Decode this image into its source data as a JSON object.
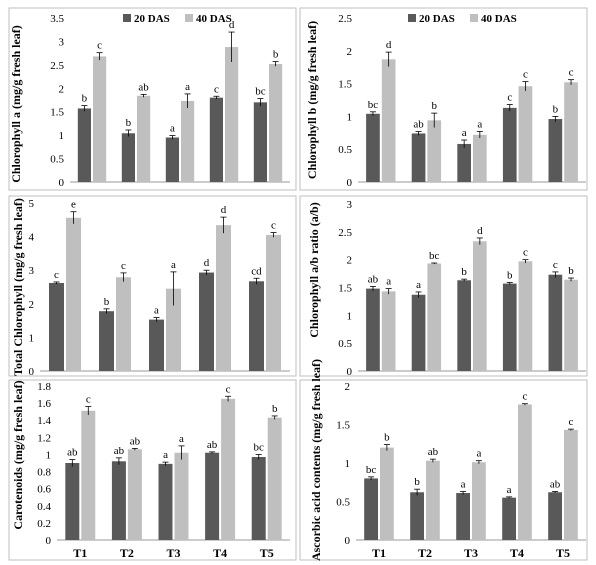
{
  "colors": {
    "dark": "#595959",
    "light": "#bfbfbf",
    "axis": "#999999",
    "text": "#000000",
    "frame": "#bfbfbf"
  },
  "chart_data": [
    {
      "type": "bar",
      "panel": "top-left",
      "categories": [
        "T1",
        "T2",
        "T3",
        "T4",
        "T5"
      ],
      "series": [
        {
          "name": "20 DAS",
          "values": [
            1.57,
            1.04,
            0.95,
            1.8,
            1.7
          ],
          "errors": [
            0.06,
            0.07,
            0.04,
            0.03,
            0.08
          ],
          "labels": [
            "b",
            "b",
            "a",
            "c",
            "bc"
          ]
        },
        {
          "name": "40 DAS",
          "values": [
            2.68,
            1.84,
            1.73,
            2.88,
            2.52
          ],
          "errors": [
            0.08,
            0.03,
            0.15,
            0.32,
            0.05
          ],
          "labels": [
            "c",
            "ab",
            "a",
            "d",
            "b"
          ]
        }
      ],
      "ylabel": "Chlorophyll a (mg/g fresh leaf)",
      "ylim": [
        0,
        3.5
      ],
      "yticks": [
        "0",
        "0.5",
        "1",
        "1.5",
        "2",
        "2.5",
        "3",
        "3.5"
      ],
      "legend": "top",
      "show_xlabels": false
    },
    {
      "type": "bar",
      "panel": "top-right",
      "categories": [
        "T1",
        "T2",
        "T3",
        "T4",
        "T5"
      ],
      "series": [
        {
          "name": "20 DAS",
          "values": [
            1.04,
            0.74,
            0.58,
            1.13,
            0.96
          ],
          "errors": [
            0.03,
            0.03,
            0.06,
            0.05,
            0.04
          ],
          "labels": [
            "bc",
            "ab",
            "a",
            "c",
            "b"
          ]
        },
        {
          "name": "40 DAS",
          "values": [
            1.87,
            0.94,
            0.72,
            1.46,
            1.52
          ],
          "errors": [
            0.11,
            0.11,
            0.05,
            0.07,
            0.04
          ],
          "labels": [
            "d",
            "b",
            "a",
            "c",
            "c"
          ]
        }
      ],
      "ylabel": "Chlorophyll b (mg/g fresh leaf)",
      "ylim": [
        0,
        2.5
      ],
      "yticks": [
        "0",
        "0.5",
        "1",
        "1.5",
        "2",
        "2.5"
      ],
      "legend": "top",
      "show_xlabels": false
    },
    {
      "type": "bar",
      "panel": "middle-left",
      "categories": [
        "T1",
        "T2",
        "T3",
        "T4",
        "T5"
      ],
      "series": [
        {
          "name": "20 DAS",
          "values": [
            2.62,
            1.78,
            1.53,
            2.93,
            2.67
          ],
          "errors": [
            0.03,
            0.07,
            0.06,
            0.07,
            0.09
          ],
          "labels": [
            "c",
            "b",
            "a",
            "d",
            "cd"
          ]
        },
        {
          "name": "40 DAS",
          "values": [
            4.56,
            2.79,
            2.45,
            4.34,
            4.05
          ],
          "errors": [
            0.18,
            0.13,
            0.5,
            0.24,
            0.07
          ],
          "labels": [
            "e",
            "c",
            "a",
            "d",
            "c"
          ]
        }
      ],
      "ylabel": "Total Chlorophyll (mg/g fresh leaf)",
      "ylim": [
        0,
        5
      ],
      "yticks": [
        "0",
        "1",
        "2",
        "3",
        "4",
        "5"
      ],
      "legend": "none",
      "show_xlabels": false
    },
    {
      "type": "bar",
      "panel": "middle-right",
      "categories": [
        "T1",
        "T2",
        "T3",
        "T4",
        "T5"
      ],
      "series": [
        {
          "name": "20 DAS",
          "values": [
            1.48,
            1.37,
            1.63,
            1.57,
            1.73
          ],
          "errors": [
            0.04,
            0.05,
            0.02,
            0.02,
            0.05
          ],
          "labels": [
            "ab",
            "a",
            "b",
            "b",
            "c"
          ]
        },
        {
          "name": "40 DAS",
          "values": [
            1.43,
            1.93,
            2.33,
            1.97,
            1.64
          ],
          "errors": [
            0.05,
            0.01,
            0.06,
            0.03,
            0.03
          ],
          "labels": [
            "a",
            "bc",
            "d",
            "c",
            "b"
          ]
        }
      ],
      "ylabel": "Chlorophyll a/b ratio (a/b)",
      "ylim": [
        0,
        3
      ],
      "yticks": [
        "0",
        "0.5",
        "1",
        "1.5",
        "2",
        "2.5",
        "3"
      ],
      "legend": "none",
      "show_xlabels": false
    },
    {
      "type": "bar",
      "panel": "bottom-left",
      "categories": [
        "T1",
        "T2",
        "T3",
        "T4",
        "T5"
      ],
      "series": [
        {
          "name": "20 DAS",
          "values": [
            0.9,
            0.92,
            0.89,
            1.02,
            0.97
          ],
          "errors": [
            0.04,
            0.04,
            0.02,
            0.01,
            0.03
          ],
          "labels": [
            "ab",
            "ab",
            "a",
            "ab",
            "bc"
          ]
        },
        {
          "name": "40 DAS",
          "values": [
            1.51,
            1.06,
            1.02,
            1.65,
            1.43
          ],
          "errors": [
            0.05,
            0.01,
            0.08,
            0.03,
            0.02
          ],
          "labels": [
            "c",
            "ab",
            "a",
            "c",
            "b"
          ]
        }
      ],
      "ylabel": "Carotenoids (mg/g fresh leaf)",
      "ylim": [
        0,
        1.8
      ],
      "yticks": [
        "0",
        "0.2",
        "0.4",
        "0.6",
        "0.8",
        "1",
        "1.2",
        "1.4",
        "1.6",
        "1.8"
      ],
      "legend": "none",
      "show_xlabels": true
    },
    {
      "type": "bar",
      "panel": "bottom-right",
      "categories": [
        "T1",
        "T2",
        "T3",
        "T4",
        "T5"
      ],
      "series": [
        {
          "name": "20 DAS",
          "values": [
            0.8,
            0.62,
            0.61,
            0.55,
            0.62
          ],
          "errors": [
            0.02,
            0.04,
            0.02,
            0.01,
            0.01
          ],
          "labels": [
            "bc",
            "b",
            "a",
            "a",
            "ab"
          ]
        },
        {
          "name": "40 DAS",
          "values": [
            1.2,
            1.03,
            1.01,
            1.76,
            1.43
          ],
          "errors": [
            0.04,
            0.02,
            0.02,
            0.01,
            0.01
          ],
          "labels": [
            "b",
            "ab",
            "a",
            "c",
            "c"
          ]
        }
      ],
      "ylabel": "Ascorbic acid contents (mg/g fresh leaf)",
      "ylim": [
        0,
        2
      ],
      "yticks": [
        "0",
        "0.5",
        "1",
        "1.5",
        "2"
      ],
      "legend": "none",
      "show_xlabels": true
    }
  ]
}
